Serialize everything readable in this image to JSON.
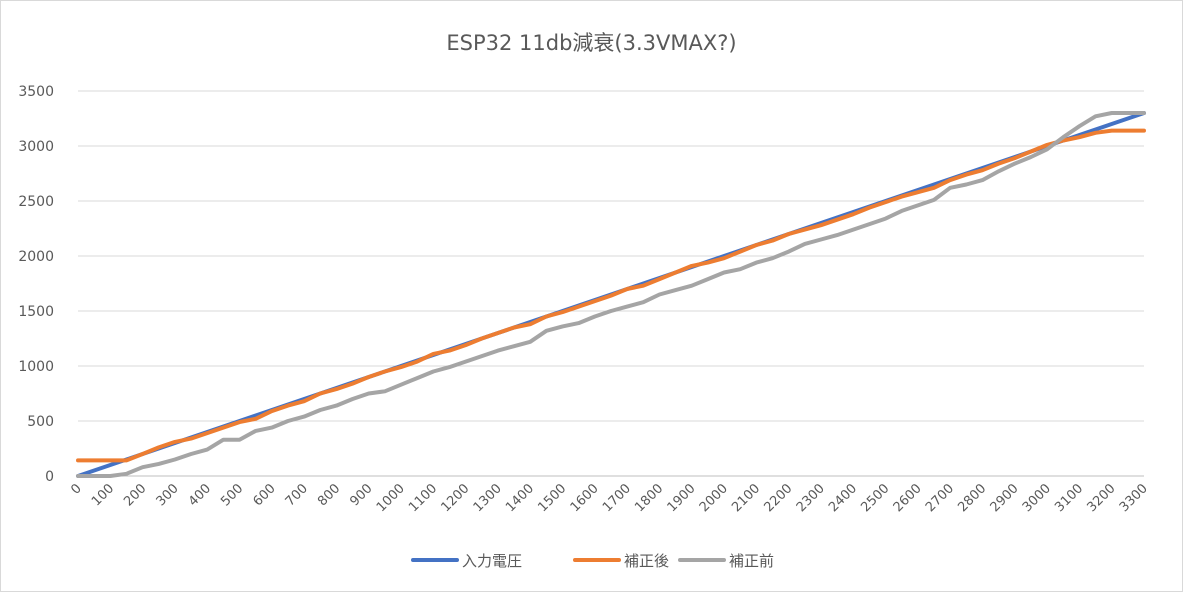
{
  "chart_data": {
    "type": "line",
    "title": "ESP32 11db減衰(3.3VMAX?)",
    "xlabel": "",
    "ylabel": "",
    "ylim": [
      0,
      3500
    ],
    "y_ticks": [
      0,
      500,
      1000,
      1500,
      2000,
      2500,
      3000,
      3500
    ],
    "grid": true,
    "legend_position": "bottom",
    "categories": [
      "0",
      "50",
      "100",
      "150",
      "200",
      "250",
      "300",
      "350",
      "400",
      "450",
      "500",
      "550",
      "600",
      "650",
      "700",
      "750",
      "800",
      "850",
      "900",
      "950",
      "1000",
      "1050",
      "1100",
      "1150",
      "1200",
      "1250",
      "1300",
      "1350",
      "1400",
      "1450",
      "1500",
      "1550",
      "1600",
      "1650",
      "1700",
      "1750",
      "1800",
      "1850",
      "1900",
      "1950",
      "2000",
      "2050",
      "2100",
      "2150",
      "2200",
      "2250",
      "2300",
      "2350",
      "2400",
      "2450",
      "2500",
      "2550",
      "2600",
      "2650",
      "2700",
      "2750",
      "2800",
      "2850",
      "2900",
      "2950",
      "3000",
      "3050",
      "3100",
      "3150",
      "3200",
      "3250",
      "3300"
    ],
    "x_tick_labels": [
      "0",
      "100",
      "200",
      "300",
      "400",
      "500",
      "600",
      "700",
      "800",
      "900",
      "1000",
      "1100",
      "1200",
      "1300",
      "1400",
      "1500",
      "1600",
      "1700",
      "1800",
      "1900",
      "2000",
      "2100",
      "2200",
      "2300",
      "2400",
      "2500",
      "2600",
      "2700",
      "2800",
      "2900",
      "3000",
      "3100",
      "3200",
      "3300"
    ],
    "series": [
      {
        "name": "入力電圧",
        "color": "#4472c4",
        "values": [
          0,
          50,
          100,
          150,
          200,
          250,
          300,
          350,
          400,
          450,
          500,
          550,
          600,
          650,
          700,
          750,
          800,
          850,
          900,
          950,
          1000,
          1050,
          1100,
          1150,
          1200,
          1250,
          1300,
          1350,
          1400,
          1450,
          1500,
          1550,
          1600,
          1650,
          1700,
          1750,
          1800,
          1850,
          1900,
          1950,
          2000,
          2050,
          2100,
          2150,
          2200,
          2250,
          2300,
          2350,
          2400,
          2450,
          2500,
          2550,
          2600,
          2650,
          2700,
          2750,
          2800,
          2850,
          2900,
          2950,
          3000,
          3050,
          3100,
          3150,
          3200,
          3250,
          3300
        ]
      },
      {
        "name": "補正後",
        "color": "#ed7d31",
        "values": [
          142,
          142,
          142,
          142,
          200,
          260,
          310,
          340,
          390,
          440,
          490,
          520,
          590,
          640,
          680,
          750,
          790,
          840,
          900,
          950,
          990,
          1040,
          1110,
          1140,
          1190,
          1250,
          1300,
          1350,
          1380,
          1450,
          1490,
          1540,
          1590,
          1640,
          1700,
          1730,
          1790,
          1850,
          1910,
          1940,
          1980,
          2040,
          2100,
          2140,
          2200,
          2240,
          2280,
          2330,
          2380,
          2440,
          2490,
          2540,
          2580,
          2620,
          2690,
          2740,
          2780,
          2840,
          2890,
          2950,
          3010,
          3050,
          3080,
          3120,
          3140,
          3140,
          3140
        ]
      },
      {
        "name": "補正前",
        "color": "#a5a5a5",
        "values": [
          0,
          0,
          0,
          20,
          80,
          110,
          150,
          200,
          240,
          330,
          330,
          410,
          440,
          500,
          540,
          600,
          640,
          700,
          750,
          770,
          830,
          890,
          950,
          990,
          1040,
          1090,
          1140,
          1180,
          1220,
          1320,
          1360,
          1390,
          1450,
          1500,
          1540,
          1580,
          1650,
          1690,
          1730,
          1790,
          1850,
          1880,
          1940,
          1980,
          2040,
          2110,
          2150,
          2190,
          2240,
          2290,
          2340,
          2410,
          2460,
          2510,
          2620,
          2650,
          2690,
          2770,
          2840,
          2900,
          2970,
          3080,
          3180,
          3270,
          3300,
          3300,
          3300
        ]
      }
    ]
  }
}
